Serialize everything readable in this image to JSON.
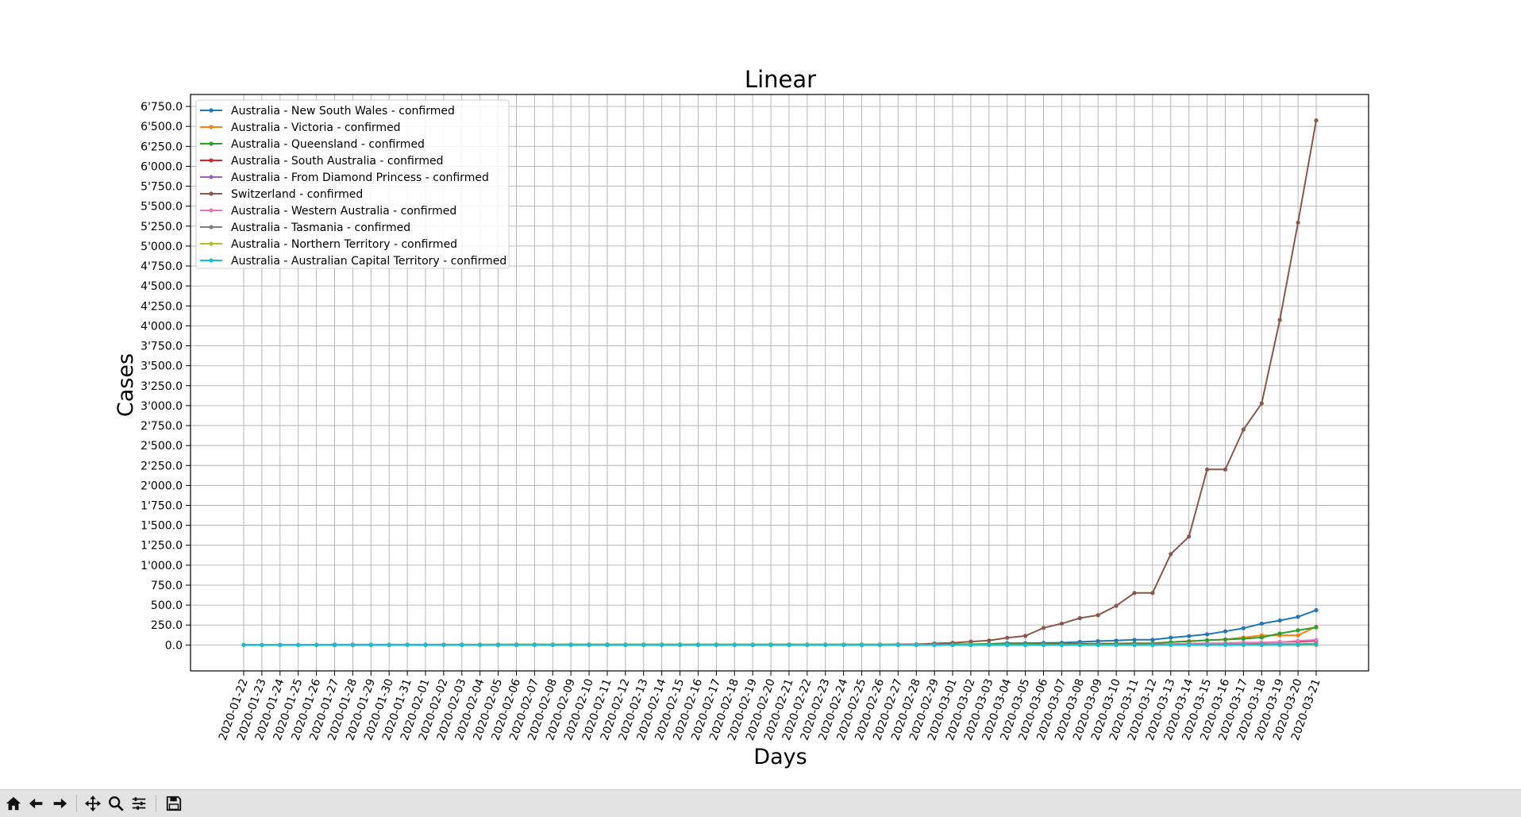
{
  "window": {
    "toolbar": {
      "buttons": [
        {
          "name": "home-button",
          "icon": "home-icon"
        },
        {
          "name": "back-button",
          "icon": "arrow-left-icon"
        },
        {
          "name": "forward-button",
          "icon": "arrow-right-icon"
        },
        {
          "name": "pan-button",
          "icon": "move-icon"
        },
        {
          "name": "zoom-button",
          "icon": "magnifier-icon"
        },
        {
          "name": "configure-subplots-button",
          "icon": "sliders-icon"
        },
        {
          "name": "save-button",
          "icon": "floppy-disk-icon"
        }
      ]
    }
  },
  "chart_data": {
    "type": "line",
    "title": "Linear",
    "xlabel": "Days",
    "ylabel": "Cases",
    "ylim": [
      -325,
      6900
    ],
    "yticks": [
      0,
      250,
      500,
      750,
      1000,
      1250,
      1500,
      1750,
      2000,
      2250,
      2500,
      2750,
      3000,
      3250,
      3500,
      3750,
      4000,
      4250,
      4500,
      4750,
      5000,
      5250,
      5500,
      5750,
      6000,
      6250,
      6500,
      6750
    ],
    "ytick_labels": [
      "0.0",
      "250.0",
      "500.0",
      "750.0",
      "1'000.0",
      "1'250.0",
      "1'500.0",
      "1'750.0",
      "2'000.0",
      "2'250.0",
      "2'500.0",
      "2'750.0",
      "3'000.0",
      "3'250.0",
      "3'500.0",
      "3'750.0",
      "4'000.0",
      "4'250.0",
      "4'500.0",
      "4'750.0",
      "5'000.0",
      "5'250.0",
      "5'500.0",
      "5'750.0",
      "6'000.0",
      "6'250.0",
      "6'500.0",
      "6'750.0"
    ],
    "grid": true,
    "legend_position": "top-left",
    "markers": true,
    "x": [
      "2020-01-22",
      "2020-01-23",
      "2020-01-24",
      "2020-01-25",
      "2020-01-26",
      "2020-01-27",
      "2020-01-28",
      "2020-01-29",
      "2020-01-30",
      "2020-01-31",
      "2020-02-01",
      "2020-02-02",
      "2020-02-03",
      "2020-02-04",
      "2020-02-05",
      "2020-02-06",
      "2020-02-07",
      "2020-02-08",
      "2020-02-09",
      "2020-02-10",
      "2020-02-11",
      "2020-02-12",
      "2020-02-13",
      "2020-02-14",
      "2020-02-15",
      "2020-02-16",
      "2020-02-17",
      "2020-02-18",
      "2020-02-19",
      "2020-02-20",
      "2020-02-21",
      "2020-02-22",
      "2020-02-23",
      "2020-02-24",
      "2020-02-25",
      "2020-02-26",
      "2020-02-27",
      "2020-02-28",
      "2020-02-29",
      "2020-03-01",
      "2020-03-02",
      "2020-03-03",
      "2020-03-04",
      "2020-03-05",
      "2020-03-06",
      "2020-03-07",
      "2020-03-08",
      "2020-03-09",
      "2020-03-10",
      "2020-03-11",
      "2020-03-12",
      "2020-03-13",
      "2020-03-14",
      "2020-03-15",
      "2020-03-16",
      "2020-03-17",
      "2020-03-18",
      "2020-03-19",
      "2020-03-20",
      "2020-03-21"
    ],
    "series": [
      {
        "name": "Australia - New South Wales - confirmed",
        "color": "#1f77b4",
        "values": [
          0,
          0,
          0,
          0,
          3,
          4,
          4,
          4,
          4,
          4,
          4,
          4,
          4,
          4,
          4,
          4,
          4,
          4,
          4,
          4,
          4,
          4,
          4,
          4,
          4,
          4,
          4,
          4,
          4,
          4,
          4,
          4,
          4,
          4,
          4,
          4,
          4,
          4,
          4,
          6,
          6,
          13,
          22,
          22,
          26,
          28,
          38,
          48,
          55,
          65,
          65,
          92,
          112,
          134,
          171,
          210,
          267,
          307,
          353,
          436
        ]
      },
      {
        "name": "Australia - Victoria - confirmed",
        "color": "#ff7f0e",
        "values": [
          0,
          0,
          0,
          0,
          1,
          1,
          1,
          1,
          1,
          2,
          3,
          4,
          4,
          4,
          4,
          4,
          4,
          4,
          4,
          4,
          4,
          4,
          4,
          4,
          4,
          4,
          4,
          4,
          4,
          4,
          4,
          4,
          4,
          4,
          4,
          4,
          4,
          4,
          4,
          7,
          7,
          9,
          9,
          10,
          10,
          11,
          11,
          15,
          18,
          21,
          21,
          36,
          49,
          57,
          71,
          94,
          121,
          121,
          121,
          229
        ]
      },
      {
        "name": "Australia - Queensland - confirmed",
        "color": "#2ca02c",
        "values": [
          0,
          0,
          0,
          0,
          0,
          0,
          0,
          0,
          1,
          3,
          2,
          3,
          3,
          3,
          4,
          5,
          5,
          5,
          5,
          5,
          5,
          5,
          5,
          5,
          5,
          5,
          5,
          5,
          5,
          5,
          5,
          5,
          5,
          5,
          5,
          5,
          5,
          5,
          9,
          9,
          9,
          11,
          11,
          13,
          13,
          13,
          15,
          15,
          18,
          20,
          20,
          35,
          46,
          61,
          68,
          78,
          94,
          144,
          184,
          221
        ]
      },
      {
        "name": "Australia - South Australia - confirmed",
        "color": "#d62728",
        "values": [
          0,
          0,
          0,
          0,
          0,
          0,
          0,
          0,
          0,
          0,
          0,
          2,
          2,
          2,
          2,
          2,
          2,
          2,
          2,
          2,
          2,
          2,
          2,
          2,
          2,
          2,
          2,
          2,
          2,
          2,
          2,
          2,
          2,
          2,
          2,
          2,
          2,
          2,
          3,
          3,
          3,
          3,
          3,
          5,
          5,
          7,
          7,
          7,
          7,
          7,
          7,
          9,
          16,
          19,
          20,
          29,
          29,
          37,
          42,
          50
        ]
      },
      {
        "name": "Australia - From Diamond Princess - confirmed",
        "color": "#9467bd",
        "values": [
          0,
          0,
          0,
          0,
          0,
          0,
          0,
          0,
          0,
          0,
          0,
          0,
          0,
          0,
          0,
          0,
          0,
          0,
          0,
          0,
          0,
          0,
          0,
          0,
          0,
          0,
          0,
          0,
          0,
          0,
          0,
          0,
          0,
          0,
          0,
          0,
          0,
          0,
          0,
          0,
          0,
          0,
          0,
          0,
          0,
          0,
          0,
          0,
          0,
          0,
          0,
          0,
          0,
          0,
          0,
          0,
          0,
          0,
          0,
          0
        ]
      },
      {
        "name": "Switzerland - confirmed",
        "color": "#8c564b",
        "values": [
          0,
          0,
          0,
          0,
          0,
          0,
          0,
          0,
          0,
          0,
          0,
          0,
          0,
          0,
          0,
          0,
          0,
          0,
          0,
          0,
          0,
          0,
          0,
          0,
          0,
          0,
          0,
          0,
          0,
          0,
          0,
          0,
          0,
          0,
          1,
          1,
          8,
          8,
          18,
          27,
          42,
          56,
          90,
          114,
          214,
          268,
          337,
          374,
          491,
          652,
          652,
          1139,
          1359,
          2200,
          2200,
          2700,
          3028,
          4075,
          5294,
          6575
        ]
      },
      {
        "name": "Australia - Western Australia - confirmed",
        "color": "#e377c2",
        "values": [
          0,
          0,
          0,
          0,
          0,
          0,
          0,
          0,
          0,
          0,
          0,
          0,
          0,
          0,
          0,
          0,
          0,
          0,
          0,
          0,
          0,
          0,
          0,
          0,
          0,
          0,
          0,
          0,
          0,
          0,
          0,
          0,
          0,
          0,
          0,
          0,
          0,
          0,
          0,
          2,
          2,
          2,
          2,
          2,
          3,
          3,
          3,
          3,
          3,
          4,
          4,
          9,
          14,
          17,
          17,
          28,
          31,
          35,
          52,
          64
        ]
      },
      {
        "name": "Australia - Tasmania - confirmed",
        "color": "#7f7f7f",
        "values": [
          0,
          0,
          0,
          0,
          0,
          0,
          0,
          0,
          0,
          0,
          0,
          0,
          0,
          0,
          0,
          0,
          0,
          0,
          0,
          0,
          0,
          0,
          0,
          0,
          0,
          0,
          0,
          0,
          0,
          0,
          0,
          0,
          0,
          0,
          0,
          0,
          0,
          0,
          0,
          0,
          1,
          1,
          1,
          1,
          1,
          1,
          1,
          1,
          2,
          2,
          2,
          5,
          6,
          6,
          7,
          7,
          10,
          10,
          10,
          16
        ]
      },
      {
        "name": "Australia - Northern Territory - confirmed",
        "color": "#bcbd22",
        "values": [
          0,
          0,
          0,
          0,
          0,
          0,
          0,
          0,
          0,
          0,
          0,
          0,
          0,
          0,
          0,
          0,
          0,
          0,
          0,
          0,
          0,
          0,
          0,
          0,
          0,
          0,
          0,
          0,
          0,
          0,
          0,
          0,
          0,
          0,
          0,
          0,
          0,
          0,
          0,
          0,
          0,
          0,
          0,
          0,
          0,
          0,
          0,
          0,
          0,
          0,
          0,
          1,
          1,
          1,
          1,
          1,
          1,
          1,
          3,
          3
        ]
      },
      {
        "name": "Australia - Australian Capital Territory - confirmed",
        "color": "#17becf",
        "values": [
          0,
          0,
          0,
          0,
          0,
          0,
          0,
          0,
          0,
          0,
          0,
          0,
          0,
          0,
          0,
          0,
          0,
          0,
          0,
          0,
          0,
          0,
          0,
          0,
          0,
          0,
          0,
          0,
          0,
          0,
          0,
          0,
          0,
          0,
          0,
          0,
          0,
          0,
          0,
          0,
          0,
          0,
          0,
          0,
          0,
          0,
          0,
          0,
          0,
          0,
          0,
          1,
          1,
          1,
          1,
          2,
          3,
          4,
          6,
          9
        ]
      }
    ]
  }
}
